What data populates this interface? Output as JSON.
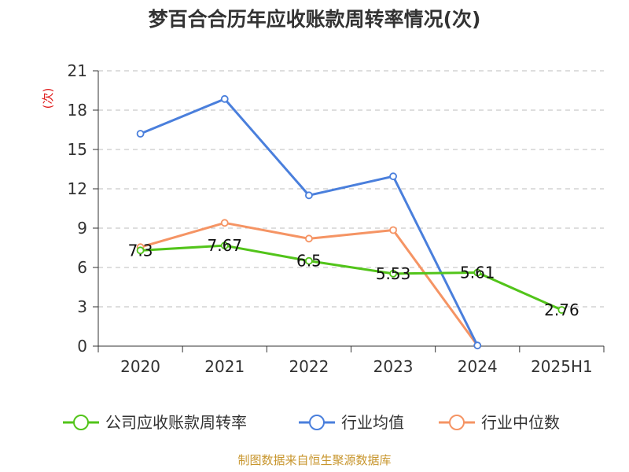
{
  "chart_data": {
    "type": "line",
    "title": "梦百合合历年应收账款周转率情况(次)",
    "ylabel": "(次)",
    "xlabel": "",
    "categories": [
      "2020",
      "2021",
      "2022",
      "2023",
      "2024",
      "2025H1"
    ],
    "ylim": [
      0,
      21
    ],
    "yticks": [
      "0",
      "3",
      "6",
      "9",
      "12",
      "15",
      "18",
      "21"
    ],
    "grid": true,
    "legend_position": "bottom",
    "series": [
      {
        "name": "公司应收账款周转率",
        "color": "#52c41a",
        "values": [
          7.3,
          7.67,
          6.5,
          5.53,
          5.61,
          2.76
        ],
        "labels": [
          "7.3",
          "7.67",
          "6.5",
          "5.53",
          "5.61",
          "2.76"
        ]
      },
      {
        "name": "行业均值",
        "color": "#4a7fdc",
        "values": [
          16.2,
          18.85,
          11.5,
          12.95,
          0.05,
          null
        ]
      },
      {
        "name": "行业中位数",
        "color": "#f59464",
        "values": [
          7.55,
          9.4,
          8.2,
          8.85,
          0.05,
          null
        ]
      }
    ]
  },
  "footer": {
    "source": "制图数据来自恒生聚源数据库"
  }
}
